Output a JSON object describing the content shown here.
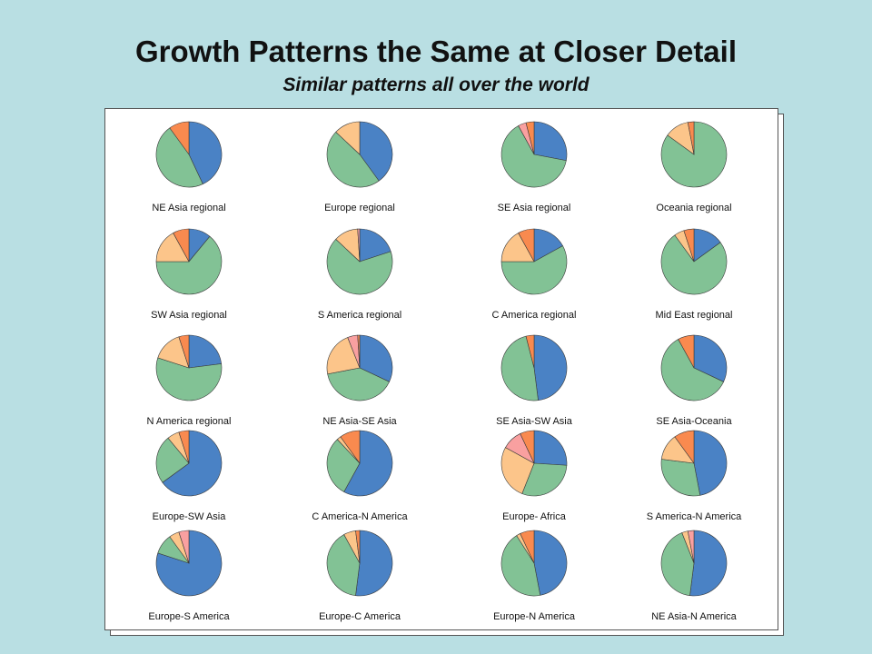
{
  "title": "Growth Patterns the Same at Closer Detail",
  "subtitle": "Similar patterns all over the world",
  "colors": [
    "#4a82c5",
    "#82c295",
    "#fcc58a",
    "#f9a0a0",
    "#f98a4f"
  ],
  "chart_data": {
    "type": "pie",
    "charts": [
      {
        "label": "NE Asia regional",
        "values": [
          43,
          47,
          0,
          0,
          10
        ]
      },
      {
        "label": "Europe regional",
        "values": [
          40,
          47,
          13,
          0,
          0
        ]
      },
      {
        "label": "SE Asia regional",
        "values": [
          28,
          64,
          0,
          4,
          4
        ]
      },
      {
        "label": "Oceania regional",
        "values": [
          0,
          85,
          12,
          0,
          3
        ]
      },
      {
        "label": "SW Asia regional",
        "values": [
          11,
          64,
          17,
          0,
          8
        ]
      },
      {
        "label": "S America regional",
        "values": [
          20,
          67,
          12,
          1,
          0
        ]
      },
      {
        "label": "C America regional",
        "values": [
          17,
          58,
          17,
          0,
          8
        ]
      },
      {
        "label": "Mid East regional",
        "values": [
          15,
          75,
          5,
          0,
          5
        ]
      },
      {
        "label": "N America regional",
        "values": [
          23,
          57,
          15,
          0,
          5
        ]
      },
      {
        "label": "NE Asia-SE Asia",
        "values": [
          32,
          40,
          22,
          5,
          1
        ]
      },
      {
        "label": "SE Asia-SW Asia",
        "values": [
          48,
          48,
          0,
          0,
          4
        ]
      },
      {
        "label": "SE Asia-Oceania",
        "values": [
          32,
          60,
          0,
          0,
          8
        ]
      },
      {
        "label": "Europe-SW Asia",
        "values": [
          65,
          24,
          6,
          0,
          5
        ]
      },
      {
        "label": "C America-N America",
        "values": [
          58,
          30,
          2,
          0,
          10
        ]
      },
      {
        "label": "Europe- Africa",
        "values": [
          26,
          30,
          27,
          10,
          7
        ]
      },
      {
        "label": "S America-N America",
        "values": [
          47,
          30,
          13,
          0,
          10
        ]
      },
      {
        "label": "Europe-S America",
        "values": [
          80,
          10,
          5,
          5,
          0
        ]
      },
      {
        "label": "Europe-C America",
        "values": [
          52,
          40,
          6,
          0,
          2
        ]
      },
      {
        "label": "Europe-N America",
        "values": [
          47,
          44,
          2,
          0,
          7
        ]
      },
      {
        "label": "NE Asia-N America",
        "values": [
          52,
          42,
          3,
          3,
          0
        ]
      }
    ]
  }
}
